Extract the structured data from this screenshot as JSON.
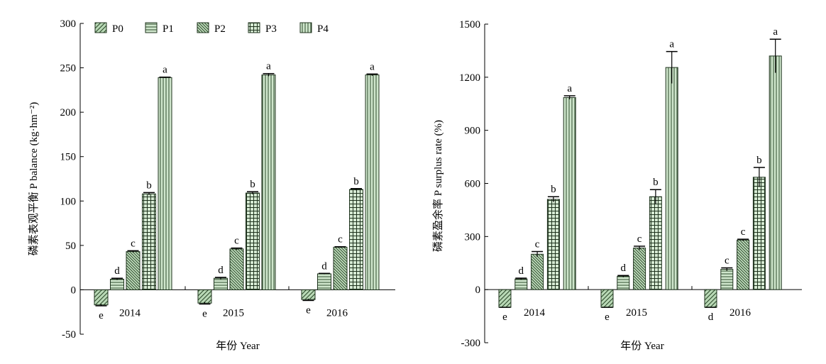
{
  "chart_data": [
    {
      "type": "bar",
      "ylabel": "磷素表观平衡 P balance (kg·hm⁻²)",
      "xlabel": "年份 Year",
      "ylim": [
        -50,
        300
      ],
      "yticks": [
        -50,
        0,
        50,
        100,
        150,
        200,
        250,
        300
      ],
      "categories": [
        "2014",
        "2015",
        "2016"
      ],
      "legend": {
        "placement": "top",
        "entries": [
          "P0",
          "P1",
          "P2",
          "P3",
          "P4"
        ]
      },
      "series": [
        {
          "name": "P0",
          "values": [
            -17,
            -15,
            -11
          ],
          "errors": [
            1,
            1,
            1
          ],
          "letters": [
            "e",
            "e",
            "e"
          ]
        },
        {
          "name": "P1",
          "values": [
            12,
            13,
            18
          ],
          "errors": [
            1,
            1,
            0.5
          ],
          "letters": [
            "d",
            "d",
            "d"
          ]
        },
        {
          "name": "P2",
          "values": [
            43,
            46,
            48
          ],
          "errors": [
            1,
            1,
            0.5
          ],
          "letters": [
            "c",
            "c",
            "c"
          ]
        },
        {
          "name": "P3",
          "values": [
            108,
            109,
            113
          ],
          "errors": [
            1.5,
            1.5,
            1
          ],
          "letters": [
            "b",
            "b",
            "b"
          ]
        },
        {
          "name": "P4",
          "values": [
            239,
            242,
            242
          ],
          "errors": [
            0.5,
            1.5,
            1
          ],
          "letters": [
            "a",
            "a",
            "a"
          ]
        }
      ]
    },
    {
      "type": "bar",
      "ylabel": "磷素盈余率 P surplus rate (%)",
      "xlabel": "年份 Year",
      "ylim": [
        -300,
        1500
      ],
      "yticks": [
        -300,
        0,
        300,
        600,
        900,
        1200,
        1500
      ],
      "categories": [
        "2014",
        "2015",
        "2016"
      ],
      "series": [
        {
          "name": "P0",
          "values": [
            -100,
            -100,
            -100
          ],
          "errors": [
            0,
            0,
            0
          ],
          "letters": [
            "e",
            "e",
            "d"
          ]
        },
        {
          "name": "P1",
          "values": [
            60,
            75,
            115
          ],
          "errors": [
            5,
            5,
            8
          ],
          "letters": [
            "d",
            "d",
            "c"
          ]
        },
        {
          "name": "P2",
          "values": [
            200,
            235,
            280
          ],
          "errors": [
            15,
            10,
            5
          ],
          "letters": [
            "c",
            "c",
            "c"
          ]
        },
        {
          "name": "P3",
          "values": [
            510,
            525,
            635
          ],
          "errors": [
            15,
            40,
            55
          ],
          "letters": [
            "b",
            "b",
            "b"
          ]
        },
        {
          "name": "P4",
          "values": [
            1085,
            1255,
            1320
          ],
          "errors": [
            10,
            90,
            95
          ],
          "letters": [
            "a",
            "a",
            "a"
          ]
        }
      ]
    }
  ]
}
